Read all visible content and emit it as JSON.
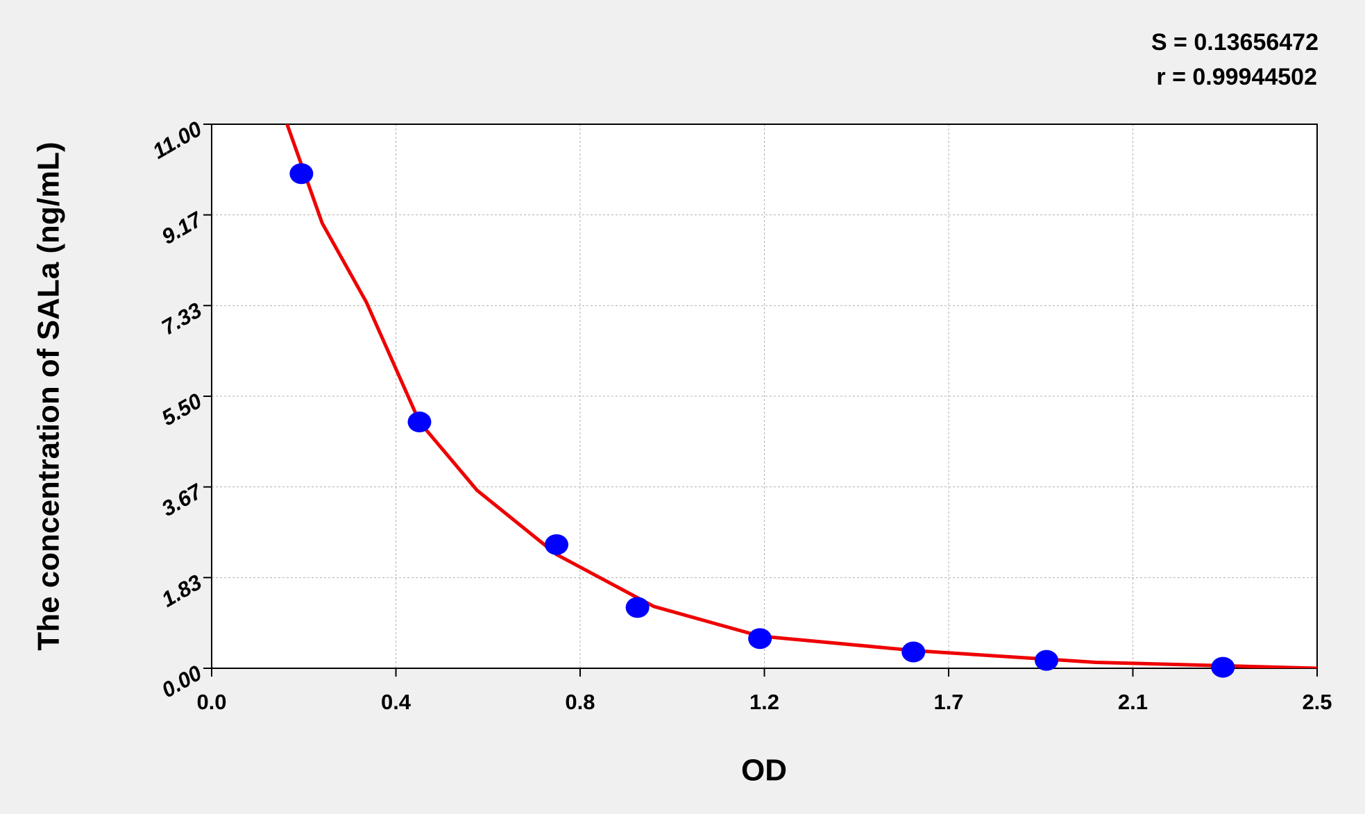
{
  "chart_data": {
    "type": "scatter",
    "x_label": "OD",
    "y_label": "The concentration of SALa (ng/mL)",
    "annotations": [
      "S = 0.13656472",
      "r = 0.99944502"
    ],
    "x": [
      0.203,
      0.47,
      0.78,
      0.963,
      1.24,
      1.587,
      1.888,
      2.287
    ],
    "values": [
      10.0,
      4.98,
      2.5,
      1.23,
      0.6,
      0.33,
      0.16,
      0.02
    ],
    "color": "#0000ff",
    "curve": {
      "x": [
        0.167,
        0.25,
        0.35,
        0.47,
        0.6,
        0.78,
        1.0,
        1.24,
        1.6,
        2.0,
        2.5
      ],
      "values": [
        11.09,
        9.0,
        7.4,
        4.98,
        3.6,
        2.3,
        1.25,
        0.65,
        0.35,
        0.12,
        0.0
      ],
      "color": "#ee0000"
    },
    "xlim": [
      0,
      2.5
    ],
    "ylim": [
      0,
      11
    ],
    "xticks": [
      {
        "value": 0,
        "label": "0.0"
      },
      {
        "value": 0.4167,
        "label": "0.4"
      },
      {
        "value": 0.8333,
        "label": "0.8"
      },
      {
        "value": 1.25,
        "label": "1.2"
      },
      {
        "value": 1.6667,
        "label": "1.7"
      },
      {
        "value": 2.0833,
        "label": "2.1"
      },
      2.5
    ],
    "yticks": [
      {
        "value": 0,
        "label": "0.00"
      },
      {
        "value": 1.8333,
        "label": "1.83"
      },
      {
        "value": 3.6667,
        "label": "3.67"
      },
      {
        "value": 5.5,
        "label": "5.50"
      },
      {
        "value": 7.3333,
        "label": "7.33"
      },
      {
        "value": 9.1667,
        "label": "9.17"
      },
      {
        "value": 11,
        "label": "11.00"
      }
    ],
    "grid": true
  }
}
